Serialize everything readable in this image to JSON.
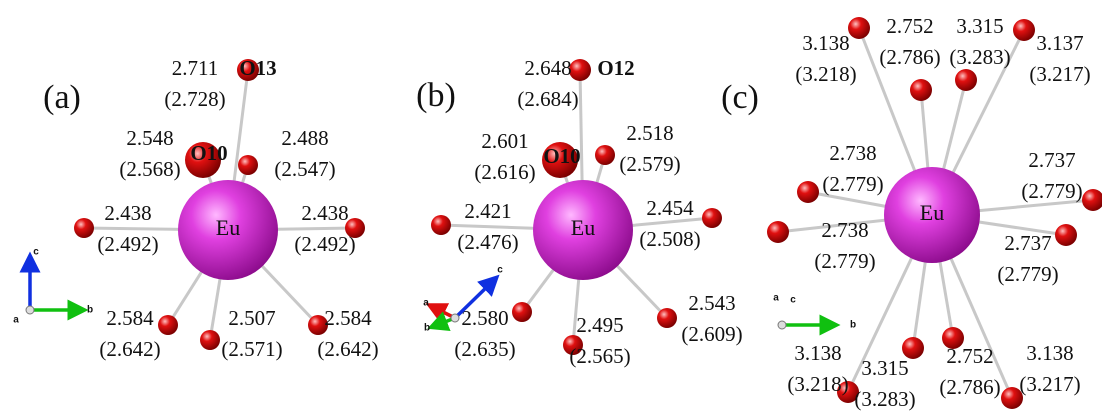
{
  "panels": [
    {
      "label": "(a)",
      "center": "Eu",
      "atom_labels": [
        "O13",
        "O10"
      ],
      "axes": [
        "c",
        "b",
        "a"
      ],
      "bonds": [
        {
          "length": "2.711",
          "alt": "(2.728)"
        },
        {
          "length": "2.548",
          "alt": "(2.568)"
        },
        {
          "length": "2.488",
          "alt": "(2.547)"
        },
        {
          "length": "2.438",
          "alt": "(2.492)"
        },
        {
          "length": "2.438",
          "alt": "(2.492)"
        },
        {
          "length": "2.584",
          "alt": "(2.642)"
        },
        {
          "length": "2.507",
          "alt": "(2.571)"
        },
        {
          "length": "2.584",
          "alt": "(2.642)"
        }
      ]
    },
    {
      "label": "(b)",
      "center": "Eu",
      "atom_labels": [
        "O12",
        "O10"
      ],
      "axes": [
        "c",
        "a",
        "b"
      ],
      "bonds": [
        {
          "length": "2.648",
          "alt": "(2.684)"
        },
        {
          "length": "2.601",
          "alt": "(2.616)"
        },
        {
          "length": "2.518",
          "alt": "(2.579)"
        },
        {
          "length": "2.421",
          "alt": "(2.476)"
        },
        {
          "length": "2.454",
          "alt": "(2.508)"
        },
        {
          "length": "2.580",
          "alt": "(2.635)"
        },
        {
          "length": "2.495",
          "alt": "(2.565)"
        },
        {
          "length": "2.543",
          "alt": "(2.609)"
        }
      ]
    },
    {
      "label": "(c)",
      "center": "Eu",
      "atom_labels": [],
      "axes": [
        "a",
        "c",
        "b"
      ],
      "bonds": [
        {
          "length": "3.138",
          "alt": "(3.218)"
        },
        {
          "length": "2.752",
          "alt": "(2.786)"
        },
        {
          "length": "3.315",
          "alt": "(3.283)"
        },
        {
          "length": "3.137",
          "alt": "(3.217)"
        },
        {
          "length": "2.738",
          "alt": "(2.779)"
        },
        {
          "length": "2.737",
          "alt": "(2.779)"
        },
        {
          "length": "2.738",
          "alt": "(2.779)"
        },
        {
          "length": "2.737",
          "alt": "(2.779)"
        },
        {
          "length": "3.138",
          "alt": "(3.218)"
        },
        {
          "length": "3.315",
          "alt": "(3.283)"
        },
        {
          "length": "2.752",
          "alt": "(2.786)"
        },
        {
          "length": "3.138",
          "alt": "(3.217)"
        }
      ]
    }
  ]
}
